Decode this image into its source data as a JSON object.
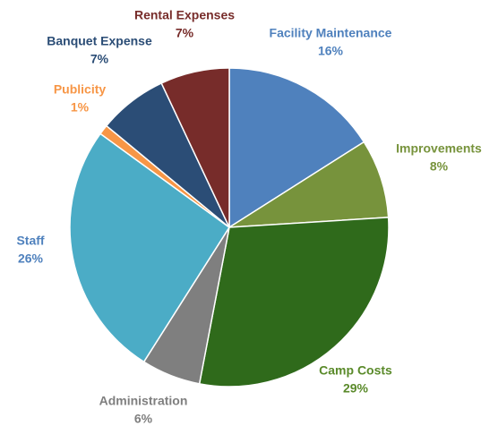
{
  "chart_data": {
    "type": "pie",
    "categories": [
      "Facility Maintenance",
      "Improvements",
      "Camp Costs",
      "Administration",
      "Staff",
      "Publicity",
      "Banquet Expense",
      "Rental Expenses"
    ],
    "values": [
      16,
      8,
      29,
      6,
      26,
      1,
      7,
      7
    ],
    "value_labels": [
      "16%",
      "8%",
      "29%",
      "6%",
      "26%",
      "1%",
      "7%",
      "7%"
    ],
    "colors": [
      "#4f81bd",
      "#77933c",
      "#2f6a1b",
      "#7f7f7f",
      "#4bacc6",
      "#f79646",
      "#2b4d76",
      "#772c2a"
    ],
    "label_colors": [
      "#4f81bd",
      "#77933c",
      "#5a8a2a",
      "#7f7f7f",
      "#4f81bd",
      "#f79646",
      "#2b4d76",
      "#772c2a"
    ]
  }
}
